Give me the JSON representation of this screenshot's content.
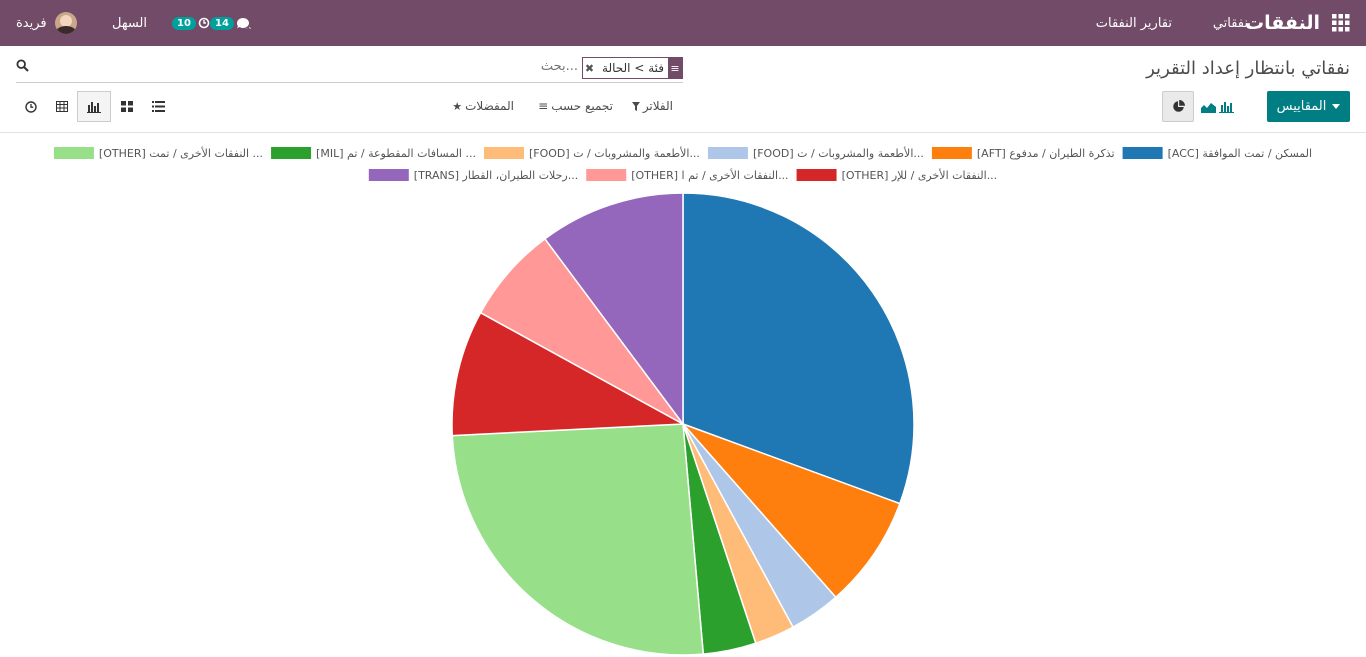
{
  "navbar": {
    "brand": "النفقات",
    "menu": [
      "نفقاتي",
      "تقارير النفقات"
    ],
    "chat_count": "14",
    "activity_count": "10",
    "database": "السهل",
    "user": "فريدة"
  },
  "control_panel": {
    "title": "نفقاتي بانتظار إعداد التقرير",
    "facet": "فئة > الحالة",
    "search_placeholder": "بحث...",
    "measures_label": "المقاييس",
    "filters_label": "الفلاتر",
    "groupby_label": "تجميع حسب",
    "favorites_label": "المفضلات"
  },
  "colors": {
    "brand": "#714b67",
    "primary": "#017e84",
    "badge": "#00a09d"
  },
  "chart_data": {
    "type": "pie",
    "legend_position": "top",
    "series": [
      {
        "label": "[ACC] المسكن / تمت الموافقة",
        "value": 30.6,
        "color": "#1f77b4"
      },
      {
        "label": "[AFT] تذكرة الطيران / مدفوع",
        "value": 7.9,
        "color": "#ff7f0e"
      },
      {
        "label": "[FOOD] الأطعمة والمشروبات / ت...",
        "value": 3.6,
        "color": "#aec7e8"
      },
      {
        "label": "[FOOD] الأطعمة والمشروبات / ت...",
        "value": 2.8,
        "color": "#ffbb78"
      },
      {
        "label": "[MIL] المسافات المقطوعة / تم ...",
        "value": 3.7,
        "color": "#2ca02c"
      },
      {
        "label": "[OTHER] النفقات الأخرى / تمت ...",
        "value": 25.6,
        "color": "#98df8a"
      },
      {
        "label": "[OTHER] النفقات الأخرى / للإر...",
        "value": 8.8,
        "color": "#d62728"
      },
      {
        "label": "[OTHER] النفقات الأخرى / تم ا...",
        "value": 6.8,
        "color": "#ff9896"
      },
      {
        "label": "[TRANS] رحلات الطيران، القطار...",
        "value": 10.2,
        "color": "#9467bd"
      }
    ]
  }
}
